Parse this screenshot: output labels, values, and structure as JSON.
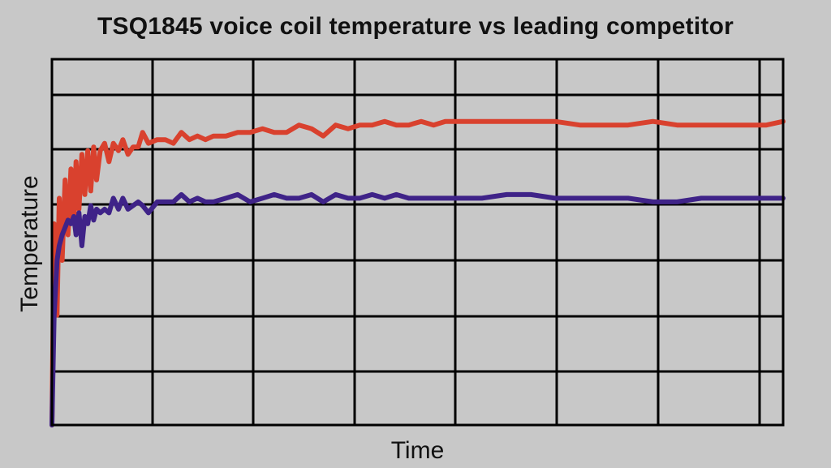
{
  "chart_data": {
    "type": "line",
    "title": "TSQ1845 voice coil temperature vs leading competitor",
    "xlabel": "Time",
    "ylabel": "Temperature",
    "xlim": [
      0,
      100
    ],
    "ylim": [
      0,
      100
    ],
    "grid": true,
    "legend": "none",
    "series": [
      {
        "color": "#d9412e",
        "x": [
          0,
          0.3,
          0.7,
          1.0,
          1.4,
          1.8,
          2.2,
          2.6,
          3.0,
          3.3,
          3.7,
          4.1,
          4.5,
          4.9,
          5.3,
          5.7,
          6.1,
          6.6,
          7.2,
          7.8,
          8.4,
          9.1,
          9.7,
          10.4,
          11.1,
          11.8,
          12.4,
          13.2,
          14.4,
          15.5,
          16.6,
          17.7,
          18.8,
          19.9,
          21.0,
          22.1,
          23.8,
          25.4,
          27.1,
          28.8,
          30.4,
          32.1,
          33.8,
          35.5,
          37.1,
          38.8,
          40.5,
          42.1,
          43.8,
          45.5,
          47.1,
          48.8,
          50.5,
          52.2,
          53.8,
          55.5,
          58.8,
          62.2,
          65.5,
          68.8,
          72.2,
          75.5,
          78.8,
          82.2,
          85.5,
          88.8,
          92.2,
          95.5,
          97.7,
          100
        ],
        "values": [
          0,
          55,
          30,
          62,
          45,
          67,
          52,
          70,
          55,
          72,
          59,
          74,
          63,
          75,
          64,
          76,
          67,
          75,
          77,
          72,
          77,
          75,
          78,
          74,
          76,
          76,
          80,
          77,
          78,
          78,
          77,
          80,
          78,
          79,
          78,
          79,
          79,
          80,
          80,
          81,
          80,
          80,
          82,
          81,
          79,
          82,
          81,
          82,
          82,
          83,
          82,
          82,
          83,
          82,
          83,
          83,
          83,
          83,
          83,
          83,
          82,
          82,
          82,
          83,
          82,
          82,
          82,
          82,
          82,
          83
        ]
      },
      {
        "color": "#3f2388",
        "x": [
          0,
          0.3,
          0.7,
          1.0,
          1.4,
          1.8,
          2.2,
          2.6,
          3.0,
          3.3,
          3.7,
          4.1,
          4.5,
          4.9,
          5.3,
          5.7,
          6.1,
          6.6,
          7.2,
          7.8,
          8.4,
          9.1,
          9.7,
          10.4,
          11.1,
          11.8,
          12.4,
          13.2,
          14.4,
          15.5,
          16.6,
          17.7,
          18.8,
          19.9,
          21.0,
          22.1,
          23.8,
          25.4,
          27.1,
          28.8,
          30.4,
          32.1,
          33.8,
          35.5,
          37.1,
          38.8,
          40.5,
          42.1,
          43.8,
          45.5,
          47.1,
          48.8,
          50.5,
          52.2,
          53.8,
          55.5,
          58.8,
          62.2,
          65.5,
          68.8,
          72.2,
          75.5,
          78.8,
          82.2,
          85.5,
          88.8,
          92.2,
          95.5,
          97.7,
          100
        ],
        "values": [
          0,
          30,
          45,
          49,
          52,
          54,
          56,
          55,
          57,
          52,
          58,
          49,
          57,
          55,
          60,
          56,
          59,
          58,
          59,
          58,
          62,
          59,
          62,
          59,
          60,
          61,
          60,
          58,
          61,
          61,
          61,
          63,
          61,
          62,
          61,
          61,
          62,
          63,
          61,
          62,
          63,
          62,
          62,
          63,
          61,
          63,
          62,
          62,
          63,
          62,
          63,
          62,
          62,
          62,
          62,
          62,
          62,
          63,
          63,
          62,
          62,
          62,
          62,
          61,
          61,
          62,
          62,
          62,
          62,
          62
        ]
      }
    ]
  }
}
